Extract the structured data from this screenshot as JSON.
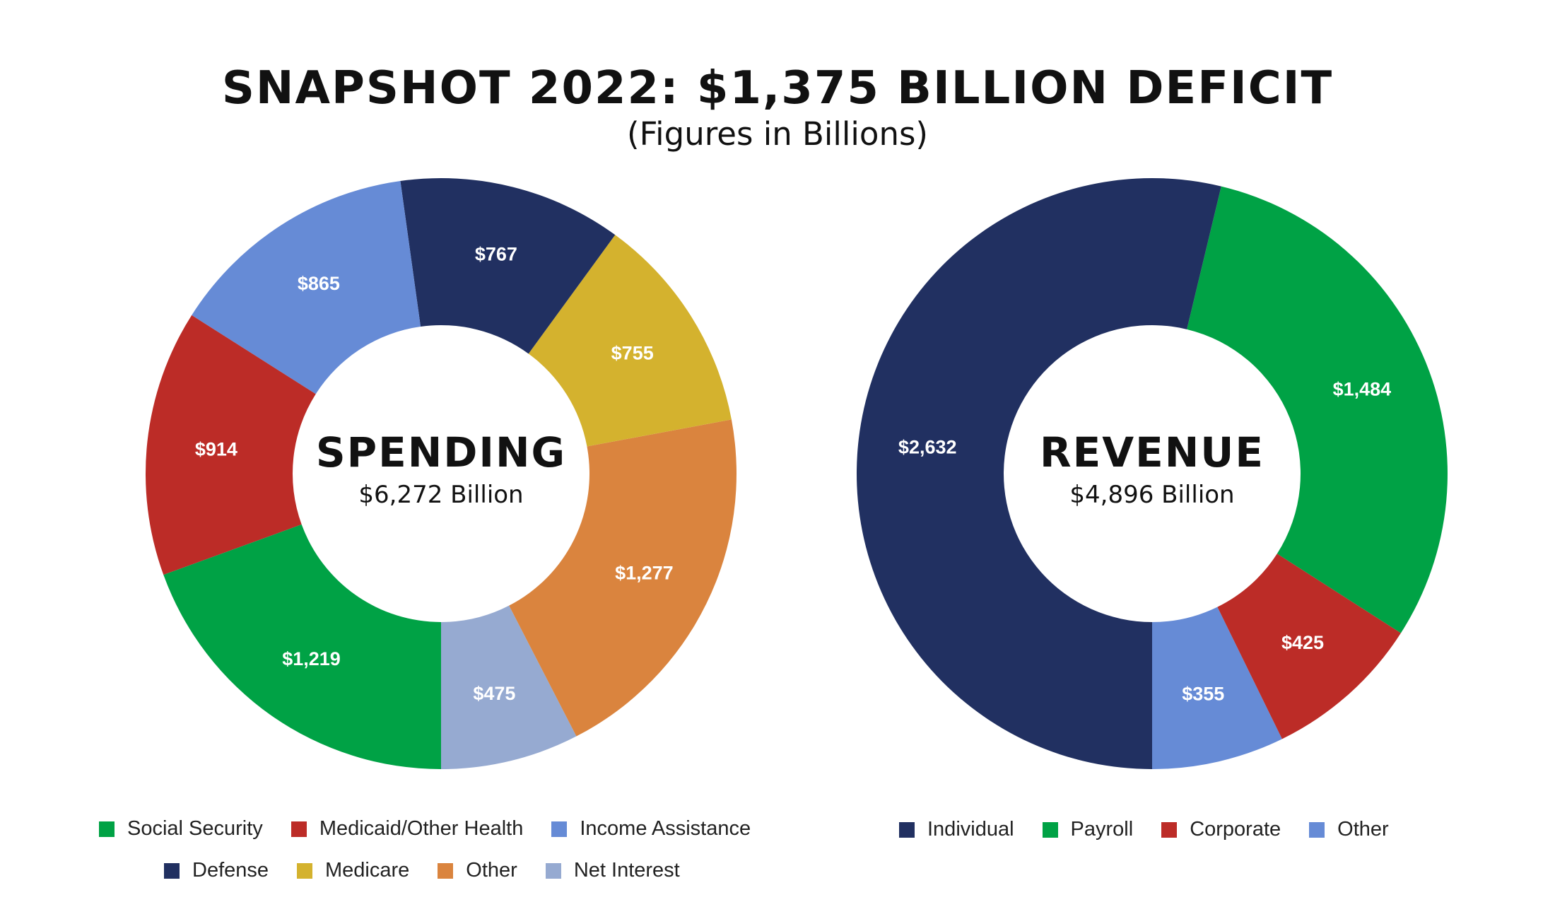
{
  "header": {
    "title": "SNAPSHOT 2022: $1,375 BILLION DEFICIT",
    "subtitle": "(Figures in Billions)"
  },
  "chart_data": [
    {
      "type": "pie",
      "variant": "donut",
      "center_label": "SPENDING",
      "center_sublabel": "$6,272 Billion",
      "start": "bottom-center",
      "direction": "counter-clockwise",
      "categories": [
        "Net Interest",
        "Other",
        "Medicare",
        "Defense",
        "Income Assistance",
        "Medicaid/Other Health",
        "Social Security"
      ],
      "values": [
        475,
        1277,
        755,
        767,
        865,
        914,
        1219
      ],
      "value_labels": [
        "$475",
        "$1,277",
        "$755",
        "$767",
        "$865",
        "$914",
        "$1,219"
      ],
      "colors": [
        "#96aad1",
        "#da843e",
        "#d4b22e",
        "#213061",
        "#668bd6",
        "#bc2c27",
        "#00a245"
      ],
      "legend": {
        "rows": [
          [
            {
              "label": "Social Security",
              "color": "#00a245"
            },
            {
              "label": "Medicaid/Other Health",
              "color": "#bc2c27"
            },
            {
              "label": "Income Assistance",
              "color": "#668bd6"
            }
          ],
          [
            {
              "label": "Defense",
              "color": "#213061"
            },
            {
              "label": "Medicare",
              "color": "#d4b22e"
            },
            {
              "label": "Other",
              "color": "#da843e"
            },
            {
              "label": "Net Interest",
              "color": "#96aad1"
            }
          ]
        ]
      }
    },
    {
      "type": "pie",
      "variant": "donut",
      "center_label": "REVENUE",
      "center_sublabel": "$4,896 Billion",
      "start": "bottom-center",
      "direction": "counter-clockwise",
      "categories": [
        "Other",
        "Corporate",
        "Payroll",
        "Individual"
      ],
      "values": [
        355,
        425,
        1484,
        2632
      ],
      "value_labels": [
        "$355",
        "$425",
        "$1,484",
        "$2,632"
      ],
      "colors": [
        "#668bd6",
        "#bc2c27",
        "#00a245",
        "#213061"
      ],
      "legend": {
        "rows": [
          [
            {
              "label": "Individual",
              "color": "#213061"
            },
            {
              "label": "Payroll",
              "color": "#00a245"
            },
            {
              "label": "Corporate",
              "color": "#bc2c27"
            },
            {
              "label": "Other",
              "color": "#668bd6"
            }
          ]
        ]
      }
    }
  ]
}
